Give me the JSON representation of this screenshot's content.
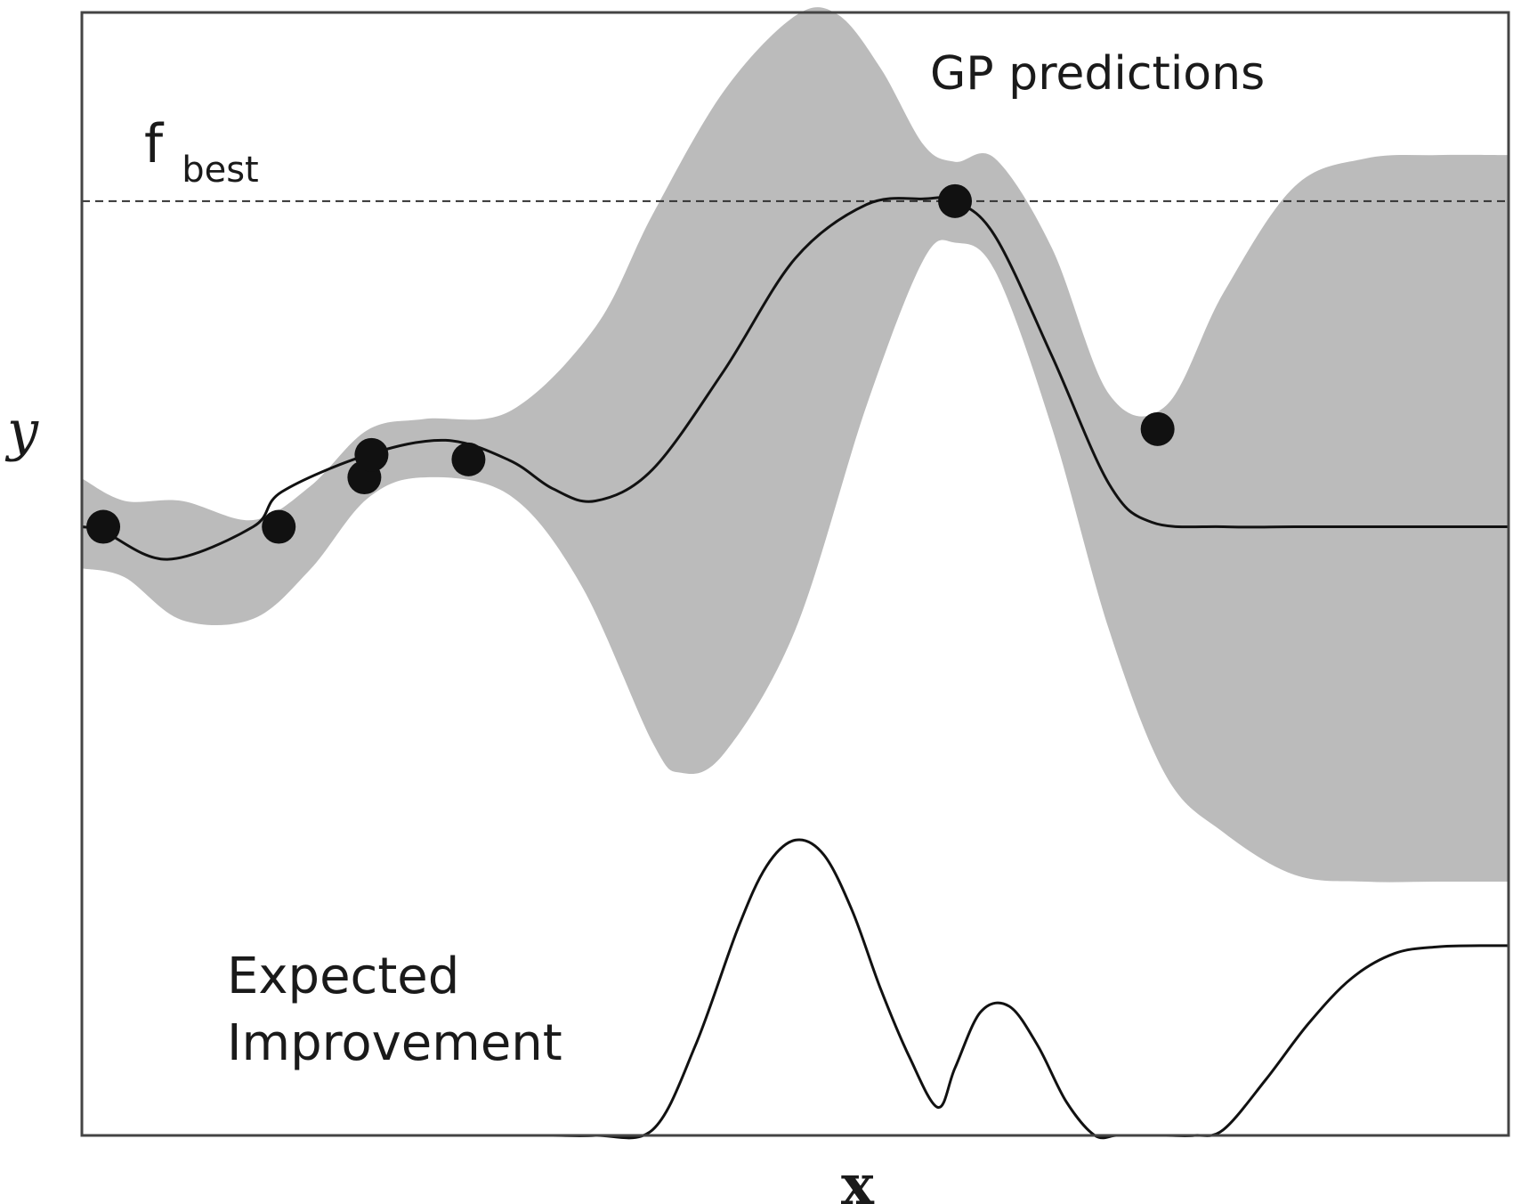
{
  "chart_data": {
    "type": "line",
    "title": "",
    "xlabel": "x",
    "ylabel": "y",
    "xlim": [
      0,
      1
    ],
    "ylim": [
      0,
      1
    ],
    "grid": false,
    "ticks": false,
    "annotations": {
      "gp_label": "GP predictions",
      "ei_label_line1": "Expected",
      "ei_label_line2": "Improvement",
      "fbest_main": "f",
      "fbest_sub": "best"
    },
    "fbest": 0.832,
    "colors": {
      "band": "#bbbbbb",
      "line": "#111111",
      "frame": "#444444"
    },
    "series": [
      {
        "kind": "mean",
        "x": [
          0.0,
          0.015,
          0.06,
          0.12,
          0.14,
          0.2,
          0.255,
          0.3,
          0.33,
          0.36,
          0.4,
          0.45,
          0.5,
          0.55,
          0.59,
          0.612,
          0.64,
          0.68,
          0.72,
          0.75,
          0.8,
          0.85,
          0.9,
          0.95,
          1.0
        ],
        "y": [
          0.542,
          0.538,
          0.513,
          0.542,
          0.573,
          0.606,
          0.619,
          0.601,
          0.576,
          0.565,
          0.593,
          0.681,
          0.781,
          0.829,
          0.834,
          0.832,
          0.801,
          0.694,
          0.58,
          0.546,
          0.542,
          0.542,
          0.542,
          0.542,
          0.542
        ]
      },
      {
        "kind": "band_upper",
        "x": [
          0.0,
          0.03,
          0.07,
          0.12,
          0.16,
          0.2,
          0.24,
          0.3,
          0.36,
          0.4,
          0.45,
          0.5,
          0.53,
          0.56,
          0.59,
          0.612,
          0.64,
          0.68,
          0.72,
          0.76,
          0.8,
          0.85,
          0.9,
          0.95,
          1.0
        ],
        "y": [
          0.585,
          0.565,
          0.565,
          0.548,
          0.578,
          0.628,
          0.638,
          0.645,
          0.72,
          0.82,
          0.93,
          0.997,
          0.998,
          0.95,
          0.882,
          0.867,
          0.87,
          0.79,
          0.66,
          0.65,
          0.75,
          0.845,
          0.87,
          0.873,
          0.873
        ]
      },
      {
        "kind": "band_lower",
        "x": [
          0.0,
          0.03,
          0.07,
          0.12,
          0.16,
          0.2,
          0.24,
          0.3,
          0.35,
          0.4,
          0.42,
          0.45,
          0.5,
          0.55,
          0.59,
          0.612,
          0.64,
          0.68,
          0.72,
          0.76,
          0.8,
          0.85,
          0.9,
          0.95,
          1.0
        ],
        "y": [
          0.505,
          0.497,
          0.459,
          0.46,
          0.504,
          0.567,
          0.586,
          0.57,
          0.49,
          0.35,
          0.323,
          0.34,
          0.45,
          0.65,
          0.78,
          0.795,
          0.77,
          0.63,
          0.45,
          0.32,
          0.27,
          0.232,
          0.226,
          0.226,
          0.226
        ]
      },
      {
        "kind": "observations",
        "x": [
          0.015,
          0.138,
          0.198,
          0.203,
          0.271,
          0.612,
          0.754
        ],
        "y": [
          0.542,
          0.542,
          0.586,
          0.606,
          0.602,
          0.832,
          0.629
        ]
      },
      {
        "kind": "expected_improvement",
        "x": [
          0.0,
          0.05,
          0.1,
          0.15,
          0.2,
          0.25,
          0.3,
          0.33,
          0.36,
          0.4,
          0.43,
          0.46,
          0.48,
          0.5,
          0.52,
          0.54,
          0.56,
          0.58,
          0.6,
          0.612,
          0.63,
          0.65,
          0.67,
          0.69,
          0.71,
          0.725,
          0.74,
          0.76,
          0.78,
          0.8,
          0.83,
          0.86,
          0.89,
          0.92,
          0.95,
          0.98,
          1.0
        ],
        "y": [
          0.0,
          0.0,
          0.0,
          0.0,
          0.0,
          0.0,
          0.0,
          0.0,
          0.0,
          0.005,
          0.08,
          0.185,
          0.24,
          0.263,
          0.25,
          0.2,
          0.13,
          0.07,
          0.025,
          0.06,
          0.11,
          0.115,
          0.08,
          0.03,
          0.0,
          0.0,
          0.0,
          0.0,
          0.0,
          0.005,
          0.05,
          0.1,
          0.14,
          0.162,
          0.168,
          0.169,
          0.169
        ]
      }
    ]
  }
}
